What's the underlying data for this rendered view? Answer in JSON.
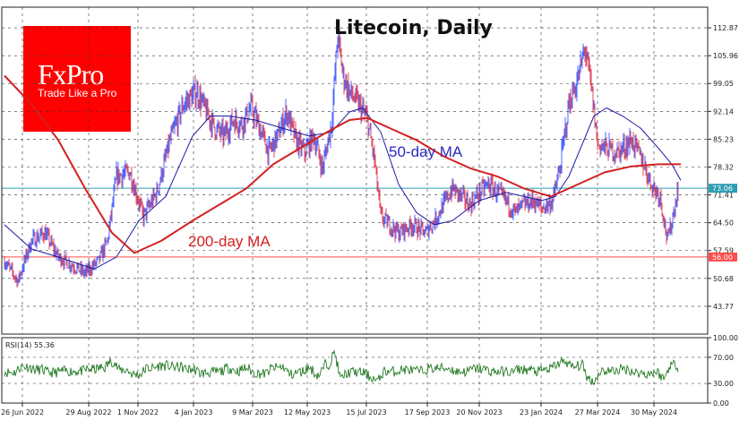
{
  "logo": {
    "brand": "FxPro",
    "tagline": "Trade Like a Pro"
  },
  "chart_data": [
    {
      "type": "candlestick-line",
      "title": "Litecoin, Daily",
      "x_tick_labels": [
        "26 Jun 2022",
        "29 Aug 2022",
        "1 Nov 2022",
        "4 Jan 2023",
        "9 Mar 2023",
        "12 May 2023",
        "15 Jul 2023",
        "17 Sep 2023",
        "20 Nov 2023",
        "23 Jan 2024",
        "27 Mar 2024",
        "30 May 2024"
      ],
      "y_tick_labels": [
        "112.87",
        "105.96",
        "99.05",
        "92.14",
        "85.23",
        "78.32",
        "71.41",
        "64.50",
        "57.59",
        "50.68",
        "43.77"
      ],
      "ylim": [
        36.86,
        118.0
      ],
      "grid": true,
      "price_anchors": [
        {
          "d": 0,
          "p": 55
        },
        {
          "d": 15,
          "p": 50
        },
        {
          "d": 30,
          "p": 60
        },
        {
          "d": 45,
          "p": 62
        },
        {
          "d": 60,
          "p": 56
        },
        {
          "d": 75,
          "p": 54
        },
        {
          "d": 90,
          "p": 52
        },
        {
          "d": 105,
          "p": 55
        },
        {
          "d": 115,
          "p": 60
        },
        {
          "d": 125,
          "p": 76
        },
        {
          "d": 140,
          "p": 77
        },
        {
          "d": 155,
          "p": 66
        },
        {
          "d": 170,
          "p": 72
        },
        {
          "d": 185,
          "p": 85
        },
        {
          "d": 200,
          "p": 94
        },
        {
          "d": 215,
          "p": 97
        },
        {
          "d": 225,
          "p": 92
        },
        {
          "d": 235,
          "p": 88
        },
        {
          "d": 245,
          "p": 86
        },
        {
          "d": 255,
          "p": 90
        },
        {
          "d": 265,
          "p": 89
        },
        {
          "d": 275,
          "p": 93
        },
        {
          "d": 285,
          "p": 88
        },
        {
          "d": 295,
          "p": 82
        },
        {
          "d": 305,
          "p": 86
        },
        {
          "d": 315,
          "p": 92
        },
        {
          "d": 325,
          "p": 85
        },
        {
          "d": 335,
          "p": 82
        },
        {
          "d": 345,
          "p": 86
        },
        {
          "d": 355,
          "p": 78
        },
        {
          "d": 365,
          "p": 89
        },
        {
          "d": 372,
          "p": 111
        },
        {
          "d": 378,
          "p": 101
        },
        {
          "d": 385,
          "p": 97
        },
        {
          "d": 395,
          "p": 94
        },
        {
          "d": 405,
          "p": 90
        },
        {
          "d": 413,
          "p": 80
        },
        {
          "d": 420,
          "p": 66
        },
        {
          "d": 430,
          "p": 64
        },
        {
          "d": 440,
          "p": 62
        },
        {
          "d": 455,
          "p": 64
        },
        {
          "d": 470,
          "p": 62
        },
        {
          "d": 480,
          "p": 65
        },
        {
          "d": 490,
          "p": 69
        },
        {
          "d": 500,
          "p": 73
        },
        {
          "d": 510,
          "p": 71
        },
        {
          "d": 520,
          "p": 69
        },
        {
          "d": 530,
          "p": 72
        },
        {
          "d": 540,
          "p": 74
        },
        {
          "d": 550,
          "p": 72
        },
        {
          "d": 560,
          "p": 70
        },
        {
          "d": 570,
          "p": 67
        },
        {
          "d": 580,
          "p": 69
        },
        {
          "d": 590,
          "p": 70
        },
        {
          "d": 600,
          "p": 68
        },
        {
          "d": 612,
          "p": 70
        },
        {
          "d": 620,
          "p": 78
        },
        {
          "d": 630,
          "p": 94
        },
        {
          "d": 640,
          "p": 100
        },
        {
          "d": 648,
          "p": 108
        },
        {
          "d": 655,
          "p": 98
        },
        {
          "d": 662,
          "p": 84
        },
        {
          "d": 672,
          "p": 83
        },
        {
          "d": 685,
          "p": 82
        },
        {
          "d": 700,
          "p": 85
        },
        {
          "d": 712,
          "p": 80
        },
        {
          "d": 722,
          "p": 74
        },
        {
          "d": 732,
          "p": 71
        },
        {
          "d": 740,
          "p": 60
        },
        {
          "d": 746,
          "p": 66
        },
        {
          "d": 752,
          "p": 73
        }
      ],
      "series": [
        {
          "name": "50-day MA",
          "color": "#1a1aa0",
          "values": [
            {
              "d": 0,
              "v": 64
            },
            {
              "d": 30,
              "v": 58
            },
            {
              "d": 60,
              "v": 56
            },
            {
              "d": 100,
              "v": 53
            },
            {
              "d": 125,
              "v": 56
            },
            {
              "d": 150,
              "v": 65
            },
            {
              "d": 180,
              "v": 71
            },
            {
              "d": 210,
              "v": 86
            },
            {
              "d": 230,
              "v": 91
            },
            {
              "d": 250,
              "v": 91
            },
            {
              "d": 280,
              "v": 90
            },
            {
              "d": 310,
              "v": 88
            },
            {
              "d": 340,
              "v": 86
            },
            {
              "d": 365,
              "v": 87
            },
            {
              "d": 385,
              "v": 92
            },
            {
              "d": 400,
              "v": 93
            },
            {
              "d": 420,
              "v": 87
            },
            {
              "d": 440,
              "v": 74
            },
            {
              "d": 460,
              "v": 67
            },
            {
              "d": 480,
              "v": 64
            },
            {
              "d": 500,
              "v": 65
            },
            {
              "d": 530,
              "v": 70
            },
            {
              "d": 560,
              "v": 72
            },
            {
              "d": 580,
              "v": 71
            },
            {
              "d": 600,
              "v": 70
            },
            {
              "d": 615,
              "v": 71
            },
            {
              "d": 630,
              "v": 76
            },
            {
              "d": 645,
              "v": 84
            },
            {
              "d": 658,
              "v": 91
            },
            {
              "d": 672,
              "v": 93
            },
            {
              "d": 690,
              "v": 91
            },
            {
              "d": 710,
              "v": 88
            },
            {
              "d": 730,
              "v": 83
            },
            {
              "d": 745,
              "v": 79
            },
            {
              "d": 755,
              "v": 75
            }
          ]
        },
        {
          "name": "200-day MA",
          "color": "#d42020",
          "values": [
            {
              "d": 0,
              "v": 101
            },
            {
              "d": 30,
              "v": 94
            },
            {
              "d": 60,
              "v": 85
            },
            {
              "d": 90,
              "v": 73
            },
            {
              "d": 120,
              "v": 62
            },
            {
              "d": 145,
              "v": 57
            },
            {
              "d": 175,
              "v": 60
            },
            {
              "d": 210,
              "v": 65
            },
            {
              "d": 240,
              "v": 69
            },
            {
              "d": 270,
              "v": 73
            },
            {
              "d": 300,
              "v": 79
            },
            {
              "d": 330,
              "v": 83
            },
            {
              "d": 360,
              "v": 87
            },
            {
              "d": 385,
              "v": 90
            },
            {
              "d": 405,
              "v": 90.5
            },
            {
              "d": 430,
              "v": 88
            },
            {
              "d": 460,
              "v": 85
            },
            {
              "d": 490,
              "v": 81
            },
            {
              "d": 520,
              "v": 78
            },
            {
              "d": 550,
              "v": 76
            },
            {
              "d": 580,
              "v": 73
            },
            {
              "d": 610,
              "v": 71
            },
            {
              "d": 640,
              "v": 74
            },
            {
              "d": 670,
              "v": 77
            },
            {
              "d": 700,
              "v": 78.5
            },
            {
              "d": 730,
              "v": 79
            },
            {
              "d": 755,
              "v": 79
            }
          ]
        }
      ],
      "horizontal_lines": [
        {
          "label": "73.06",
          "value": 73.06,
          "color": "#2e9db5"
        },
        {
          "label": "56.00",
          "value": 56.0,
          "color": "#ff4d4d"
        }
      ],
      "annotations": [
        {
          "text": "50-day MA",
          "color": "#2b2bbf"
        },
        {
          "text": "200-day MA",
          "color": "#d42020"
        }
      ],
      "bull_color": "#1f3fff",
      "bear_color": "#d61c3a"
    },
    {
      "type": "line",
      "indicator_label": "RSI(14) 55.36",
      "y_tick_labels": [
        "100.00",
        "70.00",
        "30.00",
        "0.00"
      ],
      "ylim": [
        0,
        100
      ],
      "levels": [
        70,
        30
      ],
      "color": "#0b6b0b"
    }
  ]
}
